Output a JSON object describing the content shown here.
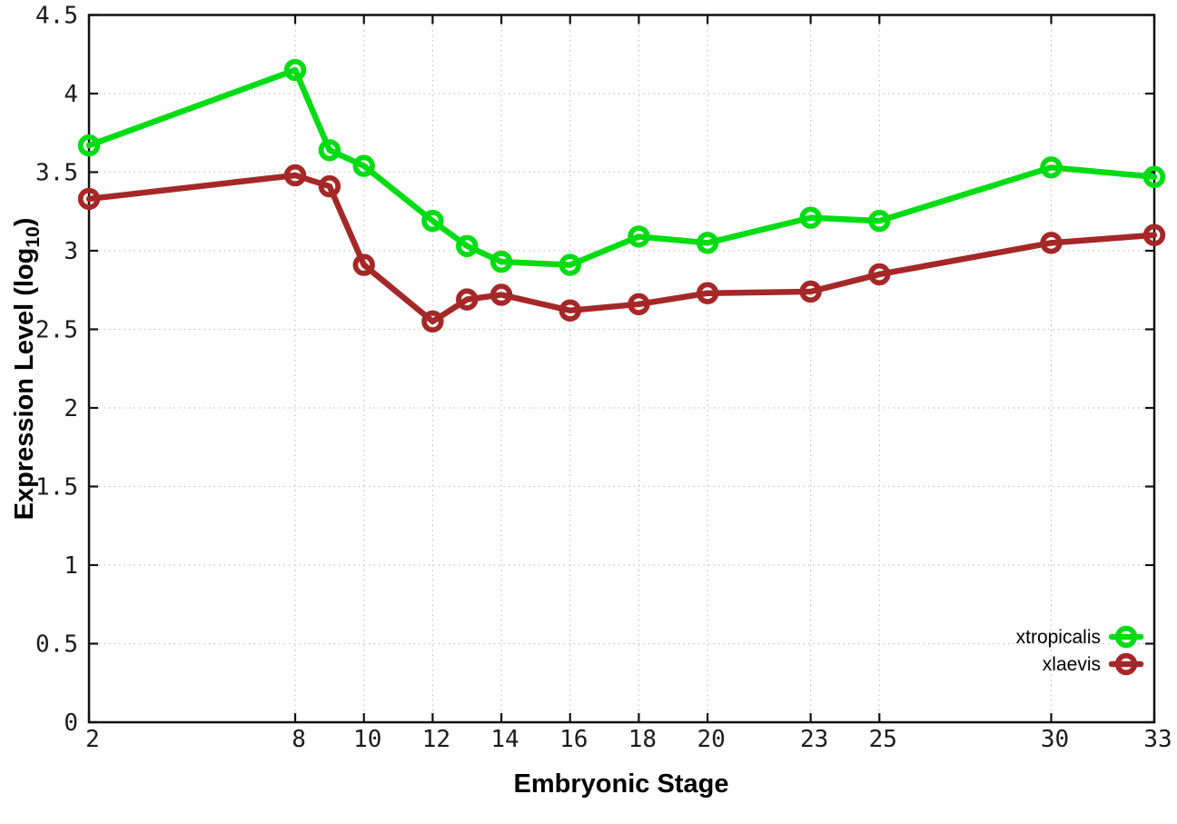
{
  "chart_data": {
    "type": "line",
    "title": "",
    "xlabel": "Embryonic Stage",
    "ylabel": "Expression Level (log10)",
    "ylabel_parts": {
      "pre": "Expression Level (log",
      "sub": "10",
      "post": ")"
    },
    "x": [
      2,
      8,
      9,
      10,
      12,
      13,
      14,
      16,
      18,
      20,
      23,
      25,
      30,
      33
    ],
    "xticks": [
      2,
      8,
      10,
      12,
      14,
      16,
      18,
      20,
      23,
      25,
      30,
      33
    ],
    "yticks": [
      0,
      0.5,
      1,
      1.5,
      2,
      2.5,
      3,
      3.5,
      4,
      4.5
    ],
    "xlim": [
      2,
      33
    ],
    "ylim": [
      0,
      4.5
    ],
    "grid": true,
    "legend_position": "bottom-right",
    "series": [
      {
        "name": "xtropicalis",
        "color": "#00dc14",
        "values": [
          3.67,
          4.15,
          3.64,
          3.54,
          3.19,
          3.03,
          2.93,
          2.91,
          3.09,
          3.05,
          3.21,
          3.19,
          3.53,
          3.47
        ]
      },
      {
        "name": "xlaevis",
        "color": "#a52828",
        "values": [
          3.33,
          3.48,
          3.41,
          2.91,
          2.55,
          2.69,
          2.72,
          2.62,
          2.66,
          2.73,
          2.74,
          2.85,
          3.05,
          3.1
        ]
      }
    ]
  },
  "colors": {
    "background": "#ffffff",
    "border": "#111111",
    "grid": "#c2c2c2",
    "text": "#1c1c1c"
  }
}
